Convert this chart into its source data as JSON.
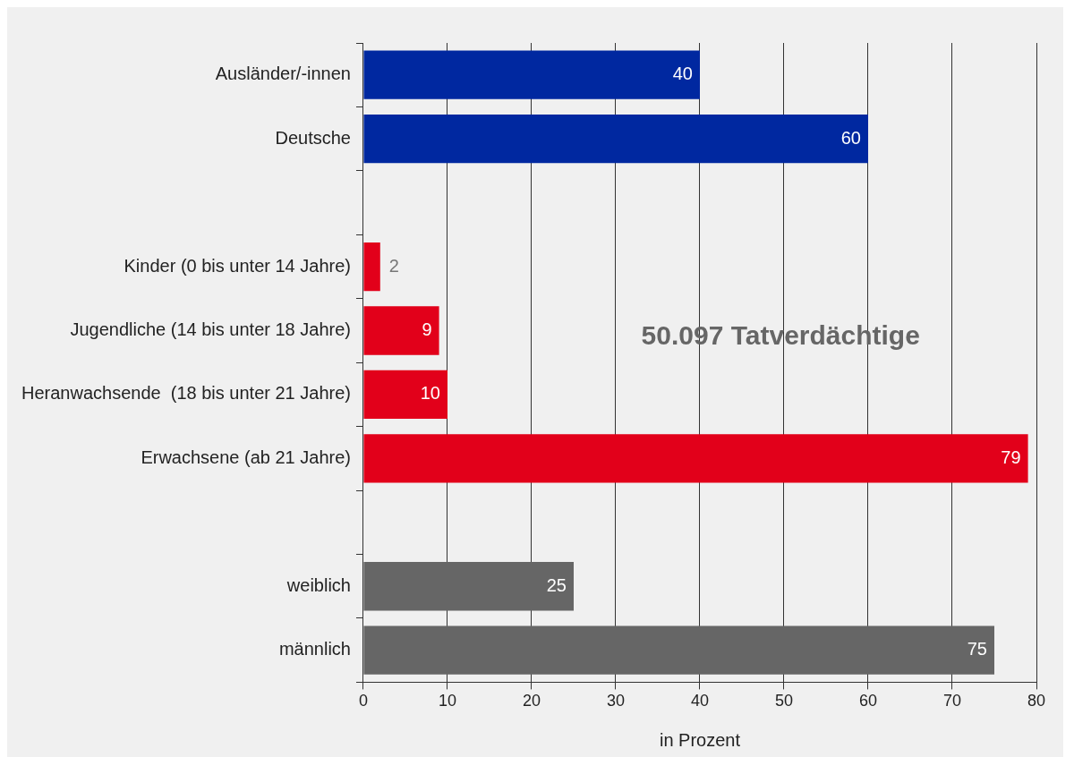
{
  "chart_data": {
    "type": "bar",
    "orientation": "horizontal",
    "xlabel": "in Prozent",
    "categories": [
      "Ausländer/-innen",
      "Deutsche",
      null,
      "Kinder (0 bis unter 14 Jahre)",
      "Jugendliche (14 bis unter 18 Jahre)",
      "Heranwachsende  (18 bis unter 21 Jahre)",
      "Erwachsene (ab 21 Jahre)",
      null,
      "weiblich",
      "männlich"
    ],
    "values": [
      40,
      60,
      null,
      2,
      9,
      10,
      79,
      null,
      25,
      75
    ],
    "colors": [
      "#0028a0",
      "#0028a0",
      null,
      "#e2001a",
      "#e2001a",
      "#e2001a",
      "#e2001a",
      null,
      "#666666",
      "#666666"
    ],
    "xlim": [
      0,
      80
    ],
    "xticks": [
      0,
      10,
      20,
      30,
      40,
      50,
      60,
      70,
      80
    ],
    "grid": "x",
    "legend": false,
    "data_labels": true,
    "annotations": [
      "50.097 Tatverdächtige"
    ]
  }
}
